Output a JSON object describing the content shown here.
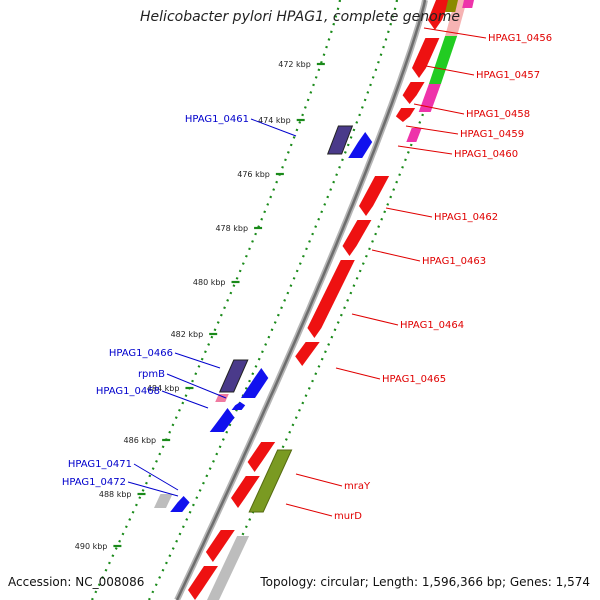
{
  "title": "Helicobacter pylori HPAG1, complete genome",
  "footer": {
    "accession": "Accession: NC_008086",
    "topology": "Topology: circular; Length: 1,596,366 bp; Genes: 1,574"
  },
  "colors": {
    "backbone": "#9a9a9a",
    "tick": "#1a8a1a",
    "forward_gene": "#ee1111",
    "reverse_gene": "#1111ee",
    "forward_label": "#e00000",
    "reverse_label": "#0000cc",
    "hypothetical": "#4a3a8a",
    "ribosomal": "#f07aa0",
    "cds_green": "#22cc22",
    "cds_magenta": "#ee33aa",
    "cds_olive": "#7a9a22",
    "rna_gray": "#bdbdbd"
  },
  "scale_ticks": [
    {
      "label": "472 kbp"
    },
    {
      "label": "474 kbp"
    },
    {
      "label": "476 kbp"
    },
    {
      "label": "478 kbp"
    },
    {
      "label": "480 kbp"
    },
    {
      "label": "482 kbp"
    },
    {
      "label": "484 kbp"
    },
    {
      "label": "486 kbp"
    },
    {
      "label": "488 kbp"
    },
    {
      "label": "490 kbp"
    }
  ],
  "forward_genes": [
    {
      "label": "HPAG1_0456"
    },
    {
      "label": "HPAG1_0457"
    },
    {
      "label": "HPAG1_0458"
    },
    {
      "label": "HPAG1_0459"
    },
    {
      "label": "HPAG1_0460"
    },
    {
      "label": "HPAG1_0462"
    },
    {
      "label": "HPAG1_0463"
    },
    {
      "label": "HPAG1_0464"
    },
    {
      "label": "HPAG1_0465"
    },
    {
      "label": "mraY"
    },
    {
      "label": "murD"
    }
  ],
  "reverse_genes": [
    {
      "label": "HPAG1_0461"
    },
    {
      "label": "HPAG1_0466"
    },
    {
      "label": "rpmB"
    },
    {
      "label": "HPAG1_0468"
    },
    {
      "label": "HPAG1_0471"
    },
    {
      "label": "HPAG1_0472"
    }
  ]
}
